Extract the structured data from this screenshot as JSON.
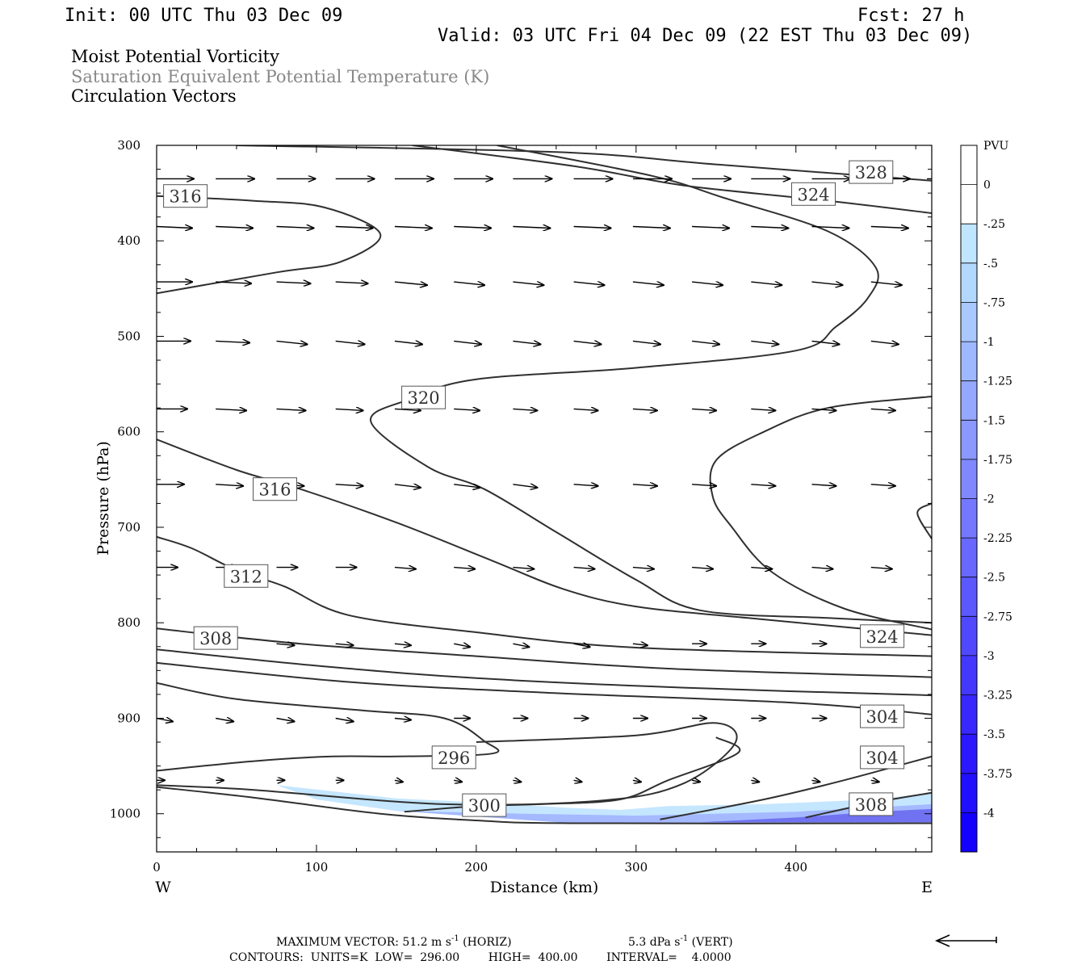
{
  "header": {
    "init": "Init: 00 UTC Thu 03 Dec 09",
    "fcst": "Fcst:   27 h",
    "valid": "Valid: 03 UTC Fri 04 Dec 09 (22 EST Thu 03 Dec 09)",
    "field1": "Moist Potential Vorticity",
    "field2": "Saturation Equivalent Potential Temperature (K)",
    "field3": "Circulation Vectors"
  },
  "colors": {
    "field2_text": "#888888",
    "contour": "#303030",
    "shade_light": "#bfe3ff",
    "shade_mid": "#a0b4ff",
    "shade_dark": "#6a6af0"
  },
  "axes": {
    "xlabel": "Distance (km)",
    "ylabel": "Pressure (hPa)",
    "west": "W",
    "east": "E"
  },
  "footer": {
    "line1_prefix": "MAXIMUM VECTOR:  51.2 m s",
    "line1_horiz": " (HORIZ)",
    "line1_vert_prefix": "5.3 dPa s",
    "line1_vert": " (VERT)",
    "sup": "-1",
    "line2": "CONTOURS:  UNITS=K  LOW=  296.00        HIGH=  400.00        INTERVAL=    4.0000"
  },
  "colorbar": {
    "units": "PVU",
    "labels": [
      "0",
      "-.25",
      "-.5",
      "-.75",
      "-1",
      "-1.25",
      "-1.5",
      "-1.75",
      "-2",
      "-2.25",
      "-2.5",
      "-2.75",
      "-3",
      "-3.25",
      "-3.5",
      "-3.75",
      "-4"
    ],
    "colors": [
      "#ffffff",
      "#ffffff",
      "#bfe5ff",
      "#b2d8ff",
      "#a8c8ff",
      "#9eb8ff",
      "#94a8ff",
      "#8a98ff",
      "#8088ff",
      "#7478ff",
      "#6868ff",
      "#5c58ff",
      "#5048ff",
      "#4438ff",
      "#3828ff",
      "#2c18ff",
      "#2010ff",
      "#1400ff"
    ]
  },
  "chart_data": {
    "type": "contour",
    "title": "",
    "xlabel": "Distance (km)",
    "ylabel": "Pressure (hPa)",
    "xlim": [
      0,
      485
    ],
    "ylim": [
      1040,
      300
    ],
    "x_ticks": [
      0,
      100,
      200,
      300,
      400
    ],
    "y_ticks": [
      300,
      400,
      500,
      600,
      700,
      800,
      900,
      1000
    ],
    "contour_labels": [
      {
        "text": "316",
        "x": 18,
        "p": 353
      },
      {
        "text": "328",
        "x": 447,
        "p": 328
      },
      {
        "text": "324",
        "x": 411,
        "p": 351
      },
      {
        "text": "320",
        "x": 167,
        "p": 564
      },
      {
        "text": "316",
        "x": 74,
        "p": 660
      },
      {
        "text": "312",
        "x": 56,
        "p": 751
      },
      {
        "text": "308",
        "x": 37,
        "p": 816
      },
      {
        "text": "324",
        "x": 454,
        "p": 814
      },
      {
        "text": "304",
        "x": 454,
        "p": 898
      },
      {
        "text": "296",
        "x": 186,
        "p": 941
      },
      {
        "text": "304",
        "x": 454,
        "p": 941
      },
      {
        "text": "300",
        "x": 205,
        "p": 991
      },
      {
        "text": "308",
        "x": 447,
        "p": 990
      }
    ],
    "contours": [
      {
        "pts": [
          [
            50,
            300
          ],
          [
            250,
            307
          ],
          [
            350,
            320
          ],
          [
            485,
            337
          ]
        ]
      },
      {
        "pts": [
          [
            160,
            300
          ],
          [
            262,
            322
          ],
          [
            330,
            342
          ],
          [
            420,
            358
          ],
          [
            485,
            371
          ]
        ]
      },
      {
        "pts": [
          [
            0,
            353
          ],
          [
            60,
            358
          ],
          [
            105,
            365
          ],
          [
            140,
            393
          ],
          [
            115,
            422
          ],
          [
            75,
            433
          ],
          [
            0,
            455
          ]
        ]
      },
      {
        "pts": [
          [
            213,
            300
          ],
          [
            310,
            332
          ],
          [
            355,
            355
          ],
          [
            420,
            390
          ],
          [
            450,
            428
          ],
          [
            445,
            460
          ],
          [
            425,
            490
          ],
          [
            400,
            515
          ],
          [
            300,
            533
          ],
          [
            200,
            545
          ],
          [
            160,
            565
          ],
          [
            134,
            589
          ],
          [
            170,
            637
          ],
          [
            205,
            660
          ],
          [
            250,
            705
          ],
          [
            300,
            755
          ],
          [
            340,
            787
          ],
          [
            420,
            795
          ],
          [
            485,
            800
          ]
        ]
      },
      {
        "pts": [
          [
            0,
            608
          ],
          [
            50,
            640
          ],
          [
            90,
            660
          ],
          [
            150,
            695
          ],
          [
            210,
            735
          ],
          [
            255,
            765
          ],
          [
            300,
            783
          ],
          [
            370,
            795
          ],
          [
            485,
            813
          ]
        ]
      },
      {
        "pts": [
          [
            485,
            563
          ],
          [
            420,
            575
          ],
          [
            380,
            600
          ],
          [
            350,
            630
          ],
          [
            348,
            668
          ],
          [
            360,
            700
          ],
          [
            385,
            747
          ],
          [
            430,
            785
          ],
          [
            485,
            807
          ]
        ]
      },
      {
        "pts": [
          [
            485,
            675
          ],
          [
            476,
            685
          ],
          [
            485,
            712
          ]
        ]
      },
      {
        "pts": [
          [
            0,
            710
          ],
          [
            22,
            722
          ],
          [
            50,
            745
          ],
          [
            80,
            762
          ],
          [
            120,
            792
          ],
          [
            200,
            810
          ],
          [
            300,
            826
          ],
          [
            485,
            835
          ]
        ]
      },
      {
        "pts": [
          [
            0,
            806
          ],
          [
            90,
            822
          ],
          [
            200,
            835
          ],
          [
            320,
            848
          ],
          [
            485,
            857
          ]
        ]
      },
      {
        "pts": [
          [
            0,
            828
          ],
          [
            100,
            845
          ],
          [
            200,
            858
          ],
          [
            330,
            868
          ],
          [
            485,
            876
          ]
        ]
      },
      {
        "pts": [
          [
            0,
            842
          ],
          [
            120,
            862
          ],
          [
            240,
            873
          ],
          [
            400,
            884
          ],
          [
            485,
            896
          ]
        ]
      },
      {
        "pts": [
          [
            0,
            863
          ],
          [
            50,
            880
          ],
          [
            130,
            892
          ],
          [
            180,
            900
          ],
          [
            205,
            924
          ],
          [
            210,
            937
          ],
          [
            150,
            940
          ],
          [
            110,
            940
          ],
          [
            60,
            945
          ],
          [
            0,
            955
          ]
        ]
      },
      {
        "pts": [
          [
            0,
            970
          ],
          [
            60,
            975
          ],
          [
            180,
            990
          ],
          [
            280,
            986
          ],
          [
            330,
            968
          ],
          [
            362,
            926
          ],
          [
            350,
            905
          ],
          [
            300,
            918
          ],
          [
            200,
            925
          ]
        ]
      },
      {
        "pts": [
          [
            155,
            998
          ],
          [
            200,
            992
          ],
          [
            240,
            990
          ],
          [
            290,
            985
          ],
          [
            320,
            965
          ],
          [
            364,
            936
          ],
          [
            350,
            920
          ]
        ]
      },
      {
        "pts": [
          [
            315,
            1006
          ],
          [
            380,
            985
          ],
          [
            430,
            965
          ],
          [
            485,
            940
          ]
        ]
      },
      {
        "pts": [
          [
            406,
            1004
          ],
          [
            450,
            988
          ],
          [
            485,
            978
          ]
        ]
      },
      {
        "pts": [
          [
            0,
            972
          ],
          [
            60,
            983
          ],
          [
            140,
            1000
          ],
          [
            200,
            1007
          ],
          [
            260,
            1010
          ],
          [
            485,
            1010
          ]
        ]
      }
    ],
    "shading": [
      {
        "level": "-.25 to -.5",
        "pts": [
          [
            75,
            970
          ],
          [
            150,
            984
          ],
          [
            200,
            988
          ],
          [
            260,
            994
          ],
          [
            290,
            996
          ],
          [
            320,
            992
          ],
          [
            380,
            990
          ],
          [
            450,
            985
          ],
          [
            485,
            978
          ],
          [
            485,
            1008
          ],
          [
            380,
            1010
          ],
          [
            260,
            1010
          ],
          [
            150,
            997
          ],
          [
            100,
            985
          ]
        ]
      },
      {
        "level": "-.5 to -.75",
        "pts": [
          [
            150,
            997
          ],
          [
            230,
            1000
          ],
          [
            300,
            1002
          ],
          [
            400,
            998
          ],
          [
            485,
            990
          ],
          [
            485,
            1009
          ],
          [
            380,
            1010
          ],
          [
            260,
            1010
          ]
        ]
      },
      {
        "level": "-1 to -1.5",
        "pts": [
          [
            340,
            1009
          ],
          [
            400,
            1004
          ],
          [
            450,
            998
          ],
          [
            485,
            995
          ],
          [
            485,
            1009
          ]
        ]
      }
    ],
    "vectors": [
      {
        "p": 335,
        "x": [
          0,
          37,
          75,
          112,
          149,
          186,
          223,
          261,
          298,
          335,
          372,
          410,
          447,
          482
        ],
        "u": [
          23,
          24,
          24,
          24,
          24,
          24,
          24,
          24,
          24,
          24,
          24,
          24,
          24,
          22
        ],
        "v": [
          0,
          0,
          0,
          0,
          0,
          0,
          0,
          0,
          0,
          0,
          0,
          0,
          0,
          0
        ]
      },
      {
        "p": 385,
        "x": [
          0,
          37,
          75,
          112,
          149,
          186,
          223,
          261,
          298,
          335,
          372,
          410,
          447,
          482
        ],
        "u": [
          22,
          23,
          23,
          23,
          23,
          23,
          23,
          23,
          23,
          23,
          23,
          23,
          23,
          22
        ],
        "v": [
          1,
          1,
          1,
          1,
          1,
          1,
          1,
          1,
          1,
          1,
          1,
          1,
          1,
          1
        ]
      },
      {
        "p": 443,
        "x": [
          0,
          37,
          75,
          112,
          149,
          186,
          223,
          261,
          298,
          335,
          372,
          410,
          447
        ],
        "u": [
          22,
          22,
          21,
          20,
          20,
          19,
          19,
          19,
          19,
          19,
          19,
          19,
          19
        ],
        "v": [
          0,
          1,
          1,
          1,
          2,
          2,
          2,
          2,
          2,
          2,
          2,
          2,
          2
        ]
      },
      {
        "p": 505,
        "x": [
          0,
          37,
          75,
          112,
          149,
          186,
          223,
          261,
          298,
          335,
          372,
          410,
          447
        ],
        "u": [
          21,
          21,
          19,
          18,
          17,
          17,
          17,
          17,
          17,
          17,
          17,
          17,
          17
        ],
        "v": [
          0,
          1,
          2,
          2,
          2,
          2,
          2,
          2,
          2,
          2,
          2,
          2,
          2
        ]
      },
      {
        "p": 576,
        "x": [
          0,
          37,
          75,
          112,
          149,
          186,
          223,
          261,
          298,
          335,
          372,
          410,
          447
        ],
        "u": [
          19,
          19,
          18,
          17,
          16,
          16,
          15,
          15,
          15,
          15,
          15,
          15,
          15
        ],
        "v": [
          0,
          1,
          1,
          1,
          1,
          1,
          1,
          1,
          1,
          1,
          1,
          1,
          1
        ]
      },
      {
        "p": 655,
        "x": [
          0,
          37,
          75,
          112,
          149,
          186,
          223,
          261,
          298,
          335,
          372,
          410,
          447
        ],
        "u": [
          17,
          17,
          17,
          17,
          16,
          16,
          15,
          15,
          15,
          15,
          15,
          15,
          15
        ],
        "v": [
          0,
          1,
          1,
          1,
          2,
          2,
          2,
          1,
          1,
          1,
          1,
          1,
          1
        ]
      },
      {
        "p": 742,
        "x": [
          0,
          37,
          75,
          112,
          149,
          186,
          223,
          261,
          298,
          335,
          372,
          410,
          447
        ],
        "u": [
          13,
          14,
          13,
          13,
          13,
          13,
          13,
          13,
          13,
          13,
          13,
          13,
          13
        ],
        "v": [
          0,
          0,
          0,
          0,
          1,
          1,
          1,
          1,
          1,
          1,
          1,
          1,
          1
        ]
      },
      {
        "p": 822,
        "x": [
          37,
          75,
          112,
          149,
          186,
          223,
          261,
          298,
          335,
          372,
          410,
          447
        ],
        "u": [
          11,
          11,
          11,
          10,
          10,
          10,
          10,
          9,
          9,
          9,
          9,
          9
        ],
        "v": [
          1,
          1,
          1,
          1,
          2,
          2,
          2,
          1,
          0,
          0,
          0,
          0
        ]
      },
      {
        "p": 900,
        "x": [
          0,
          37,
          75,
          112,
          149,
          186,
          223,
          261,
          298,
          335,
          372,
          410,
          447
        ],
        "u": [
          10,
          11,
          11,
          11,
          10,
          10,
          9,
          9,
          9,
          9,
          9,
          9,
          9
        ],
        "v": [
          2,
          2,
          2,
          2,
          1,
          0,
          0,
          0,
          0,
          0,
          0,
          0,
          0
        ]
      },
      {
        "p": 965,
        "x": [
          0,
          37,
          75,
          112,
          149,
          186,
          223,
          261,
          298,
          335,
          372,
          410,
          447
        ],
        "u": [
          5,
          5,
          5,
          5,
          5,
          5,
          5,
          5,
          5,
          5,
          5,
          5,
          5
        ],
        "v": [
          0,
          0,
          0,
          0,
          1,
          1,
          1,
          1,
          1,
          1,
          1,
          1,
          1
        ]
      }
    ]
  }
}
